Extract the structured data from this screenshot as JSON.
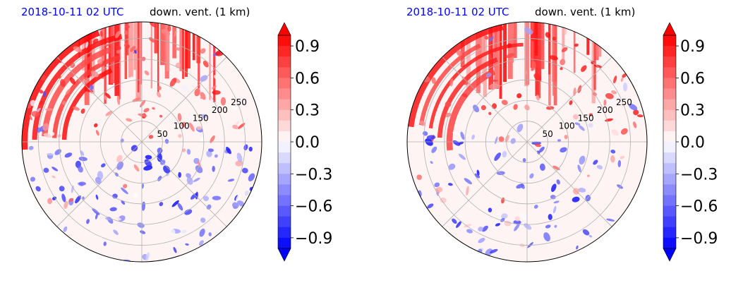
{
  "panels": [
    {
      "title_date": "2018-10-11 02 UTC",
      "title_field": "down. vent. (1 km)",
      "chart_data": {
        "type": "heatmap",
        "projection": "polar",
        "radial_ticks": [
          50,
          100,
          150,
          200,
          250
        ],
        "radial_max": 290,
        "grid": true,
        "colorbar": {
          "cmap": "bwr",
          "vmin": -1.0,
          "vmax": 1.0,
          "ticks": [
            "0.9",
            "0.6",
            "0.3",
            "0.0",
            "−0.3",
            "−0.6",
            "−0.9"
          ],
          "extend": "both"
        }
      }
    },
    {
      "title_date": "2018-10-11 02 UTC",
      "title_field": "down. vent. (1 km)",
      "chart_data": {
        "type": "heatmap",
        "projection": "polar",
        "radial_ticks": [
          50,
          100,
          150,
          200,
          250
        ],
        "radial_max": 290,
        "grid": true,
        "colorbar": {
          "cmap": "bwr",
          "vmin": -1.0,
          "vmax": 1.0,
          "ticks": [
            "0.9",
            "0.6",
            "0.3",
            "0.0",
            "−0.3",
            "−0.6",
            "−0.9"
          ],
          "extend": "both"
        }
      }
    }
  ],
  "colors": {
    "positive": "#ff0000",
    "negative": "#0000ff",
    "neutral": "#ffffff",
    "title_date": "#0000ff",
    "grid": "#b0b0b0"
  }
}
